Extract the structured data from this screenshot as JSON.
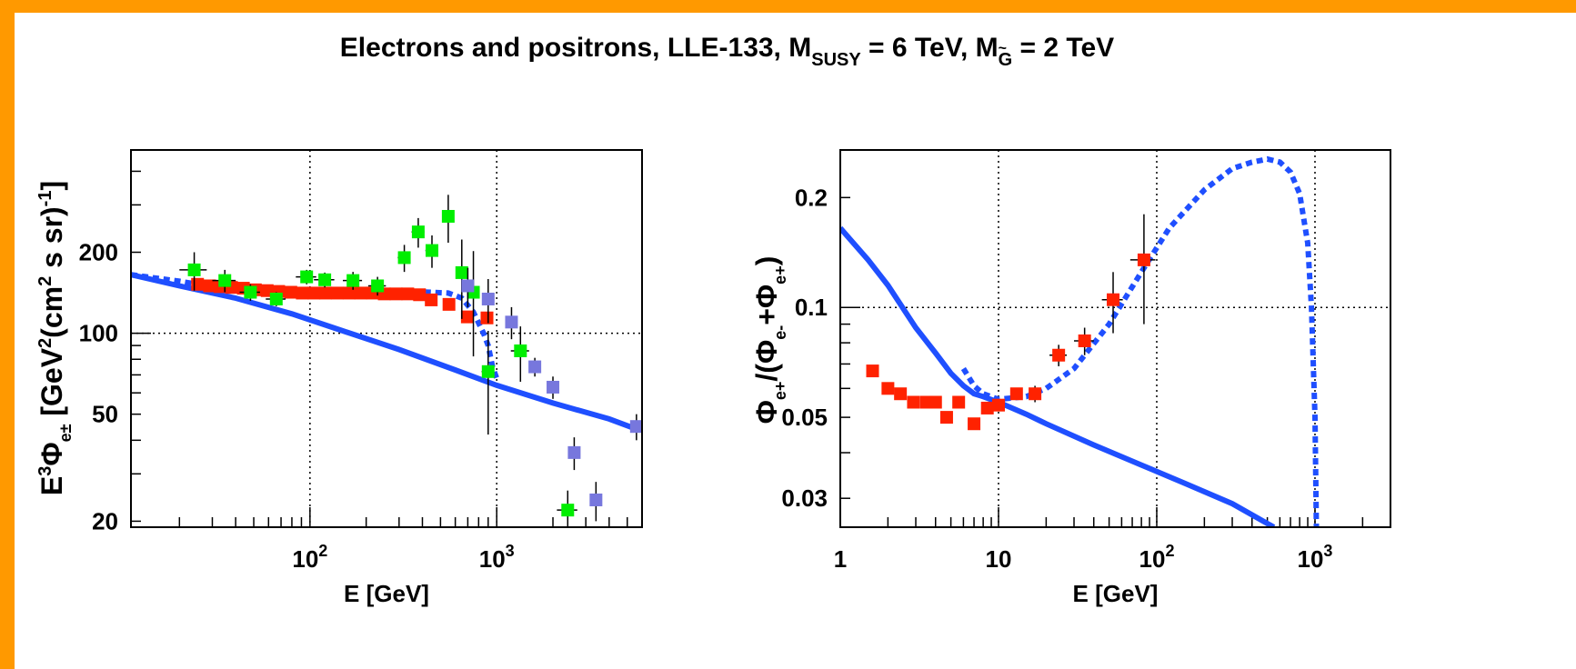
{
  "title": {
    "prefix": "Electrons and positrons, LLE-133, M",
    "sub1": "SUSY",
    "mid": " = 6 TeV, M",
    "sub2": "G",
    "suffix": " = 2 TeV"
  },
  "chart_data": [
    {
      "type": "scatter",
      "panel": "left",
      "xscale": "log",
      "yscale": "log",
      "xlim": [
        11,
        6000
      ],
      "ylim": [
        19,
        480
      ],
      "xlabel": "E [GeV]",
      "ylabel": "E³Φe± [GeV²(cm² s sr)⁻¹]",
      "xticks": [
        {
          "value": 100,
          "base": "10",
          "exp": "2"
        },
        {
          "value": 1000,
          "base": "10",
          "exp": "3"
        }
      ],
      "yticks": [
        20,
        50,
        100,
        200
      ],
      "grid": {
        "x": [
          100,
          1000
        ],
        "y": [
          100
        ]
      },
      "colors": {
        "model": "#1f4fff",
        "red": "#ff2200",
        "green": "#00ee00",
        "purple": "#7777dd",
        "errorbar": "#000000"
      },
      "lines": [
        {
          "style": "solid",
          "x": [
            11,
            20,
            40,
            80,
            150,
            300,
            600,
            1000,
            2000,
            4000,
            5600
          ],
          "y": [
            165,
            150,
            135,
            118,
            102,
            87,
            73,
            64,
            55,
            48,
            44
          ]
        },
        {
          "style": "dashed",
          "x": [
            11,
            20,
            30,
            50,
            100,
            200,
            350,
            550,
            650,
            750,
            850,
            900,
            950,
            1000
          ],
          "y": [
            165,
            156,
            149,
            144,
            142,
            143,
            143,
            141,
            135,
            120,
            100,
            90,
            75,
            68
          ]
        }
      ],
      "series": [
        {
          "color": "red",
          "points": [
            {
              "x": 25,
              "y": 152
            },
            {
              "x": 29,
              "y": 150
            },
            {
              "x": 33,
              "y": 149
            },
            {
              "x": 38,
              "y": 148
            },
            {
              "x": 44,
              "y": 147
            },
            {
              "x": 51,
              "y": 145
            },
            {
              "x": 59,
              "y": 144
            },
            {
              "x": 68,
              "y": 143
            },
            {
              "x": 79,
              "y": 142
            },
            {
              "x": 91,
              "y": 141
            },
            {
              "x": 105,
              "y": 141
            },
            {
              "x": 121,
              "y": 141
            },
            {
              "x": 140,
              "y": 141
            },
            {
              "x": 162,
              "y": 141
            },
            {
              "x": 187,
              "y": 141
            },
            {
              "x": 216,
              "y": 141
            },
            {
              "x": 250,
              "y": 140
            },
            {
              "x": 289,
              "y": 140
            },
            {
              "x": 334,
              "y": 140
            },
            {
              "x": 386,
              "y": 139
            },
            {
              "x": 446,
              "y": 133
            },
            {
              "x": 555,
              "y": 128
            },
            {
              "x": 696,
              "y": 115
            },
            {
              "x": 887,
              "y": 114
            }
          ]
        },
        {
          "color": "green",
          "points": [
            {
              "x": 24,
              "y": 172,
              "err": 28,
              "xerr": 4
            },
            {
              "x": 35,
              "y": 157,
              "err": 15,
              "xerr": 5
            },
            {
              "x": 48,
              "y": 142,
              "err": 10,
              "xerr": 6
            },
            {
              "x": 66,
              "y": 134,
              "err": 8,
              "xerr": 8
            },
            {
              "x": 96,
              "y": 162,
              "err": 10,
              "xerr": 12
            },
            {
              "x": 120,
              "y": 158,
              "err": 10,
              "xerr": 15
            },
            {
              "x": 170,
              "y": 157,
              "err": 12,
              "xerr": 20
            },
            {
              "x": 230,
              "y": 150,
              "err": 12,
              "xerr": 25
            },
            {
              "x": 320,
              "y": 191,
              "err": 22,
              "xerr": 25
            },
            {
              "x": 380,
              "y": 238,
              "err": 30,
              "xerr": 30
            },
            {
              "x": 450,
              "y": 203,
              "err": 28,
              "xerr": 35
            },
            {
              "x": 550,
              "y": 272,
              "err": 55,
              "xerr": 40
            },
            {
              "x": 650,
              "y": 168,
              "err": 55,
              "xerr": 40
            },
            {
              "x": 750,
              "y": 142,
              "err": 60,
              "xerr": 50
            },
            {
              "x": 900,
              "y": 72,
              "err": 30,
              "xerr": 70
            },
            {
              "x": 1340,
              "y": 86,
              "err": 20,
              "xerr": 150
            },
            {
              "x": 2400,
              "y": 22,
              "err": 4,
              "xerr": 300
            }
          ]
        },
        {
          "color": "purple",
          "points": [
            {
              "x": 700,
              "y": 150,
              "err": 25
            },
            {
              "x": 900,
              "y": 134,
              "err": 25
            },
            {
              "x": 1200,
              "y": 110,
              "err": 15
            },
            {
              "x": 1600,
              "y": 75,
              "err": 6
            },
            {
              "x": 2000,
              "y": 63,
              "err": 6
            },
            {
              "x": 2600,
              "y": 36,
              "err": 5
            },
            {
              "x": 3400,
              "y": 24,
              "err": 4
            },
            {
              "x": 5600,
              "y": 45,
              "err": 5
            }
          ]
        }
      ]
    },
    {
      "type": "scatter",
      "panel": "right",
      "xscale": "log",
      "yscale": "log",
      "xlim": [
        1,
        3000
      ],
      "ylim": [
        0.025,
        0.27
      ],
      "xlabel": "E [GeV]",
      "ylabel": "Φe+/(Φe-+Φe+)",
      "xticks": [
        {
          "value": 1,
          "base": "1",
          "exp": ""
        },
        {
          "value": 10,
          "base": "10",
          "exp": ""
        },
        {
          "value": 100,
          "base": "10",
          "exp": "2"
        },
        {
          "value": 1000,
          "base": "10",
          "exp": "3"
        }
      ],
      "yticks": [
        {
          "value": 0.03,
          "label": "0.03"
        },
        {
          "value": 0.05,
          "label": "0.05"
        },
        {
          "value": 0.1,
          "label": "0.1"
        },
        {
          "value": 0.2,
          "label": "0.2"
        }
      ],
      "grid": {
        "x": [
          10,
          100,
          1000
        ],
        "y": [
          0.1
        ]
      },
      "colors": {
        "model": "#1f4fff",
        "red": "#ff2200",
        "errorbar": "#000000"
      },
      "lines": [
        {
          "style": "solid",
          "x": [
            1,
            1.5,
            2,
            3,
            4,
            5,
            6,
            7,
            8,
            10,
            15,
            20,
            40,
            80,
            150,
            300,
            550
          ],
          "y": [
            0.165,
            0.135,
            0.115,
            0.088,
            0.075,
            0.066,
            0.061,
            0.058,
            0.057,
            0.055,
            0.051,
            0.048,
            0.042,
            0.037,
            0.033,
            0.029,
            0.025
          ]
        },
        {
          "style": "dashed",
          "x": [
            6,
            7,
            8,
            10,
            15,
            20,
            30,
            50,
            80,
            120,
            200,
            300,
            400,
            500,
            600,
            700,
            800,
            900,
            950,
            1000,
            1020
          ],
          "y": [
            0.068,
            0.061,
            0.058,
            0.056,
            0.057,
            0.06,
            0.068,
            0.09,
            0.125,
            0.165,
            0.21,
            0.24,
            0.25,
            0.255,
            0.25,
            0.235,
            0.205,
            0.15,
            0.1,
            0.05,
            0.025
          ]
        }
      ],
      "series": [
        {
          "color": "red",
          "points": [
            {
              "x": 1.6,
              "y": 0.067
            },
            {
              "x": 2.0,
              "y": 0.06
            },
            {
              "x": 2.4,
              "y": 0.058
            },
            {
              "x": 2.9,
              "y": 0.055
            },
            {
              "x": 3.5,
              "y": 0.055
            },
            {
              "x": 4.0,
              "y": 0.055
            },
            {
              "x": 4.7,
              "y": 0.05
            },
            {
              "x": 5.6,
              "y": 0.055
            },
            {
              "x": 7.0,
              "y": 0.048
            },
            {
              "x": 8.5,
              "y": 0.053
            },
            {
              "x": 10,
              "y": 0.054
            },
            {
              "x": 13,
              "y": 0.058,
              "err": 0.002
            },
            {
              "x": 17,
              "y": 0.058,
              "err": 0.003
            },
            {
              "x": 24,
              "y": 0.074,
              "err": 0.005,
              "xerr": 3
            },
            {
              "x": 35,
              "y": 0.081,
              "err": 0.007,
              "xerr": 5
            },
            {
              "x": 53,
              "y": 0.105,
              "err": 0.02,
              "xerr": 8
            },
            {
              "x": 83,
              "y": 0.135,
              "err": 0.045,
              "xerr": 15
            }
          ]
        }
      ]
    }
  ]
}
